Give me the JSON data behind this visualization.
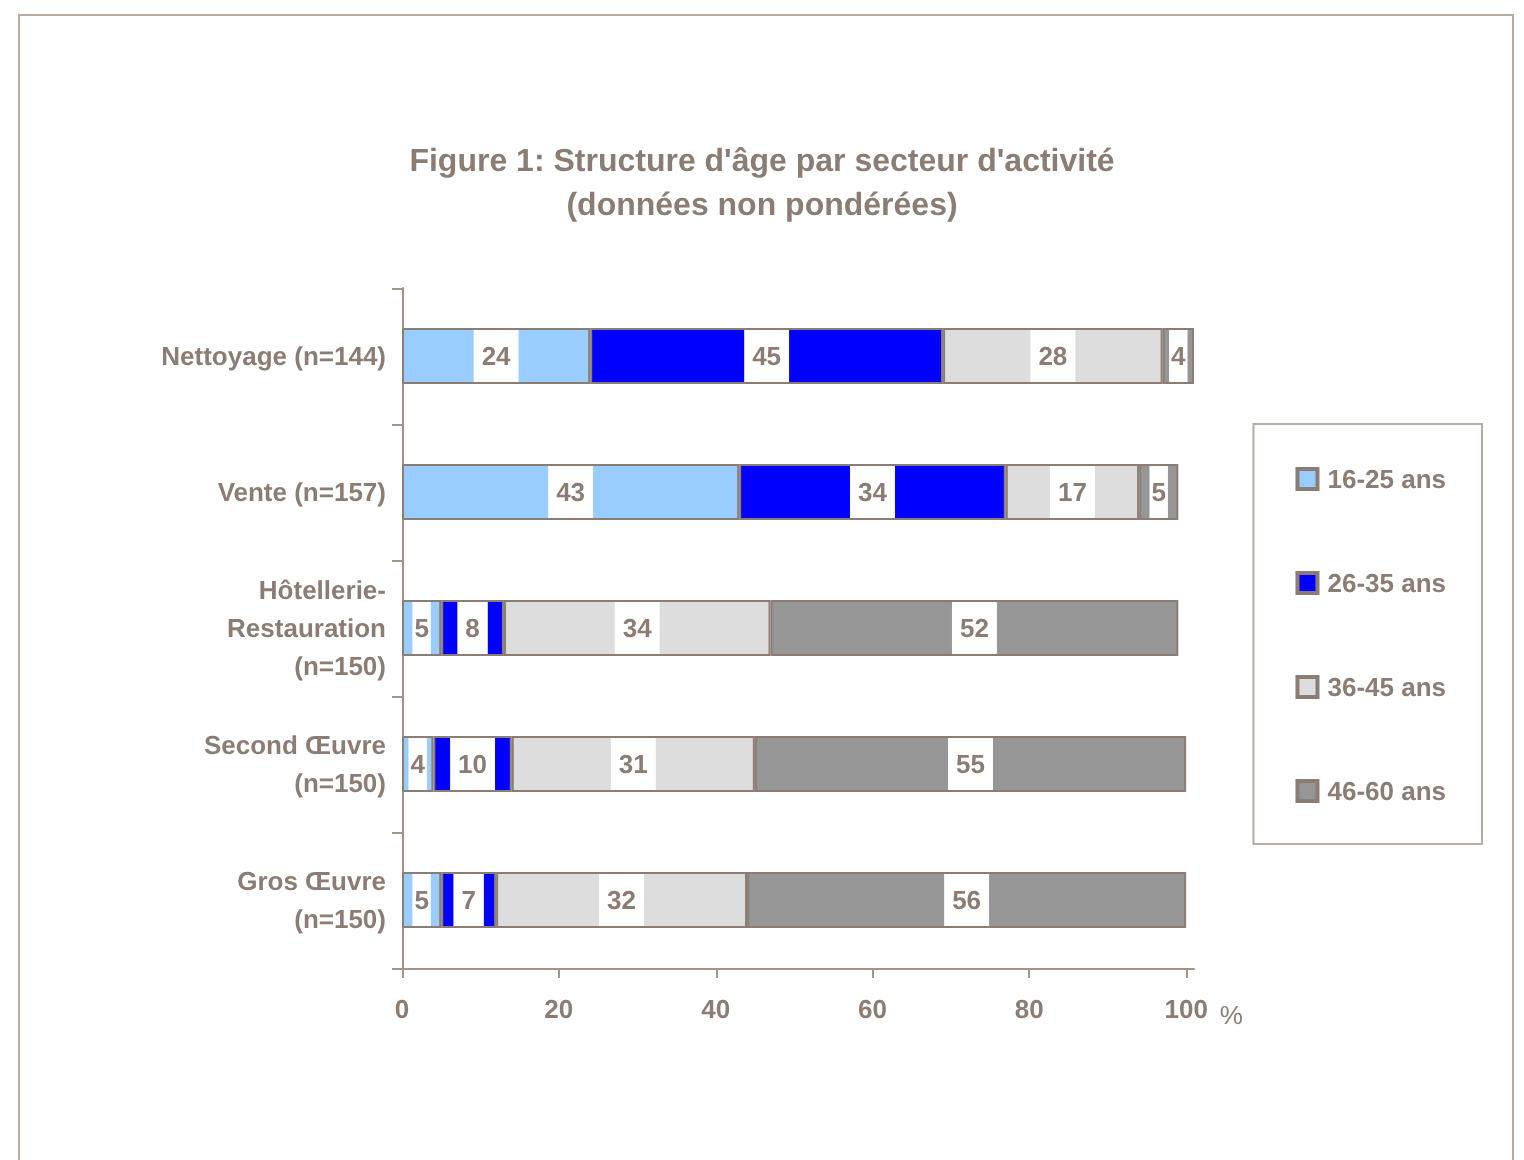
{
  "chart_data": {
    "type": "bar",
    "orientation": "horizontal",
    "stacked": true,
    "title": "Figure 1: Structure d'âge par secteur d'activité",
    "subtitle": "(données non pondérées)",
    "xlabel": "%",
    "categories": [
      "Nettoyage (n=144)",
      "Vente (n=157)",
      "Hôtellerie-Restauration (n=150)",
      "Second Œuvre (n=150)",
      "Gros Œuvre (n=150)"
    ],
    "series": [
      {
        "name": "16-25 ans",
        "color": "#99ccff",
        "values": [
          24,
          43,
          5,
          4,
          5
        ]
      },
      {
        "name": "26-35 ans",
        "color": "#0000ff",
        "values": [
          45,
          34,
          8,
          10,
          7
        ]
      },
      {
        "name": "36-45 ans",
        "color": "#dddddd",
        "values": [
          28,
          17,
          34,
          31,
          32
        ]
      },
      {
        "name": "46-60 ans",
        "color": "#969696",
        "values": [
          4,
          5,
          52,
          55,
          56
        ]
      }
    ],
    "xlim": [
      0,
      101
    ],
    "xticks": [
      0,
      20,
      40,
      60,
      80,
      100
    ],
    "data_labels": true,
    "legend": "right",
    "grid": false
  }
}
